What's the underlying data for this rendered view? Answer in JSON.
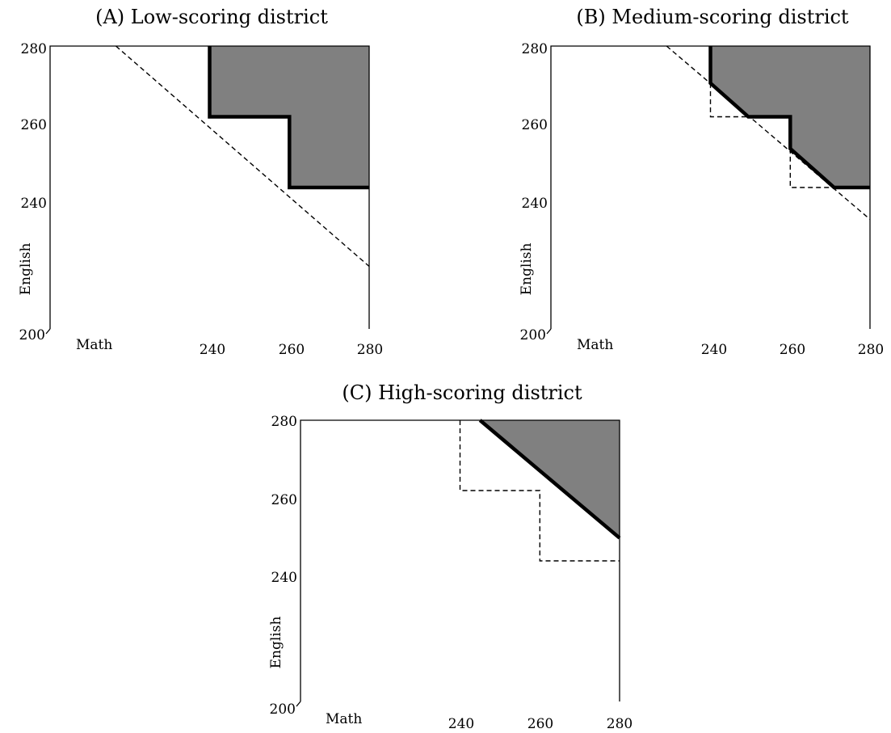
{
  "colors": {
    "region_fill": "#808080",
    "stroke": "#000000",
    "background": "#ffffff"
  },
  "axes": {
    "x_label": "Math",
    "y_label": "English",
    "min": 200,
    "max": 280,
    "origin_label": "200",
    "ticks": [
      240,
      260,
      280
    ]
  },
  "panels": [
    {
      "title": "(A) Low-scoring district",
      "region": [
        [
          240,
          280
        ],
        [
          280,
          280
        ],
        [
          280,
          240
        ],
        [
          260,
          240
        ],
        [
          260,
          260
        ],
        [
          240,
          260
        ]
      ],
      "boundary": [
        [
          240,
          280
        ],
        [
          240,
          260
        ],
        [
          260,
          260
        ],
        [
          260,
          240
        ],
        [
          280,
          240
        ]
      ],
      "dashed": [
        [
          [
            216.5,
            280
          ],
          [
            280,
            217.7
          ]
        ]
      ]
    },
    {
      "title": "(B) Medium-scoring district",
      "region": [
        [
          240,
          280
        ],
        [
          280,
          280
        ],
        [
          280,
          240
        ],
        [
          271,
          240
        ],
        [
          260,
          251
        ],
        [
          260,
          260
        ],
        [
          249.5,
          260
        ],
        [
          240,
          269.5
        ]
      ],
      "boundary": [
        [
          240,
          280
        ],
        [
          240,
          269.5
        ],
        [
          249.5,
          260
        ],
        [
          260,
          260
        ],
        [
          260,
          251
        ],
        [
          271,
          240
        ],
        [
          280,
          240
        ]
      ],
      "dashed": [
        [
          [
            229,
            280
          ],
          [
            280,
            231
          ]
        ],
        [
          [
            240,
            269.5
          ],
          [
            240,
            260
          ],
          [
            249.5,
            260
          ]
        ],
        [
          [
            260,
            251
          ],
          [
            260,
            240
          ],
          [
            271,
            240
          ]
        ]
      ]
    },
    {
      "title": "(C) High-scoring district",
      "region": [
        [
          245,
          280
        ],
        [
          280,
          280
        ],
        [
          280,
          246.5
        ]
      ],
      "boundary": [
        [
          245,
          280
        ],
        [
          280,
          246.5
        ]
      ],
      "dashed": [
        [
          [
            240,
            280
          ],
          [
            240,
            260
          ],
          [
            260,
            260
          ],
          [
            260,
            240
          ],
          [
            280,
            240
          ]
        ]
      ]
    }
  ]
}
